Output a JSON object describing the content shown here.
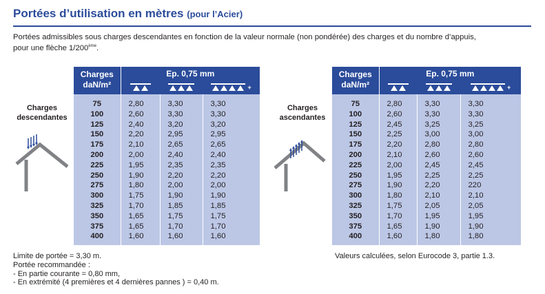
{
  "page": {
    "title": "Portées d’utilisation en mètres",
    "title_suffix": "(pour l’Acier)",
    "intro_line1": "Portées admissibles sous charges descendantes en fonction de la valeur normale (non pondérée) des charges et du nombre d’appuis,",
    "intro_line2": "pour une flèche 1/200",
    "intro_sup": "ème",
    "intro_end": "."
  },
  "left": {
    "label_line1": "Charges",
    "label_line2": "descendantes",
    "header_charges_1": "Charges",
    "header_charges_2": "daN/m²",
    "header_ep": "Ep. 0,75 mm",
    "icon_left": "roof-descending-load-icon",
    "rows": [
      {
        "charge": "75",
        "v1": "2,80",
        "v2": "3,30",
        "v3": "3,30"
      },
      {
        "charge": "100",
        "v1": "2,60",
        "v2": "3,30",
        "v3": "3,30"
      },
      {
        "charge": "125",
        "v1": "2,40",
        "v2": "3,20",
        "v3": "3,20"
      },
      {
        "charge": "150",
        "v1": "2,20",
        "v2": "2,95",
        "v3": "2,95"
      },
      {
        "charge": "175",
        "v1": "2,10",
        "v2": "2,65",
        "v3": "2,65"
      },
      {
        "charge": "200",
        "v1": "2,00",
        "v2": "2,40",
        "v3": "2,40"
      },
      {
        "charge": "225",
        "v1": "1,95",
        "v2": "2,35",
        "v3": "2,35"
      },
      {
        "charge": "250",
        "v1": "1,90",
        "v2": "2,20",
        "v3": "2,20"
      },
      {
        "charge": "275",
        "v1": "1,80",
        "v2": "2,00",
        "v3": "2,00"
      },
      {
        "charge": "300",
        "v1": "1,75",
        "v2": "1,90",
        "v3": "1,90"
      },
      {
        "charge": "325",
        "v1": "1,70",
        "v2": "1,85",
        "v3": "1,85"
      },
      {
        "charge": "350",
        "v1": "1,65",
        "v2": "1,75",
        "v3": "1,75"
      },
      {
        "charge": "375",
        "v1": "1,65",
        "v2": "1,70",
        "v3": "1,70"
      },
      {
        "charge": "400",
        "v1": "1,60",
        "v2": "1,60",
        "v3": "1,60"
      }
    ]
  },
  "right": {
    "label_line1": "Charges",
    "label_line2": "ascendantes",
    "header_charges_1": "Charges",
    "header_charges_2": "daN/m²",
    "header_ep": "Ep. 0,75 mm",
    "icon_left": "roof-ascending-load-icon",
    "rows": [
      {
        "charge": "75",
        "v1": "2,80",
        "v2": "3,30",
        "v3": "3,30"
      },
      {
        "charge": "100",
        "v1": "2,60",
        "v2": "3,30",
        "v3": "3,30"
      },
      {
        "charge": "125",
        "v1": "2,45",
        "v2": "3,25",
        "v3": "3,25"
      },
      {
        "charge": "150",
        "v1": "2,25",
        "v2": "3,00",
        "v3": "3,00"
      },
      {
        "charge": "175",
        "v1": "2,20",
        "v2": "2,80",
        "v3": "2,80"
      },
      {
        "charge": "200",
        "v1": "2,10",
        "v2": "2,60",
        "v3": "2,60"
      },
      {
        "charge": "225",
        "v1": "2,00",
        "v2": "2,45",
        "v3": "2,45"
      },
      {
        "charge": "250",
        "v1": "1,95",
        "v2": "2,25",
        "v3": "2,25"
      },
      {
        "charge": "275",
        "v1": "1,90",
        "v2": "2,20",
        "v3": "220"
      },
      {
        "charge": "300",
        "v1": "1,80",
        "v2": "2,10",
        "v3": "2,10"
      },
      {
        "charge": "325",
        "v1": "1,75",
        "v2": "2,05",
        "v3": "2,05"
      },
      {
        "charge": "350",
        "v1": "1,70",
        "v2": "1,95",
        "v3": "1,95"
      },
      {
        "charge": "375",
        "v1": "1,65",
        "v2": "1,90",
        "v3": "1,90"
      },
      {
        "charge": "400",
        "v1": "1,60",
        "v2": "1,80",
        "v3": "1,80"
      }
    ]
  },
  "support_icons": {
    "col1": "two-supports-icon",
    "col2": "three-supports-icon",
    "col3": "four-plus-supports-icon",
    "plus": "+"
  },
  "notes": {
    "line1": "Limite de portée = 3,30 m.",
    "line2": "Portée recommandée :",
    "line3": "- En partie courante = 0,80 mm,",
    "line4": "- En extrémité (4 premières et 4 dernières pannes ) = 0,40 m."
  },
  "calc_note": "Valeurs calculées, selon Eurocode 3, partie 1.3.",
  "colors": {
    "brand_blue": "#2b4c9b",
    "table_body": "#bcc7e6",
    "roof_grey": "#808285"
  }
}
